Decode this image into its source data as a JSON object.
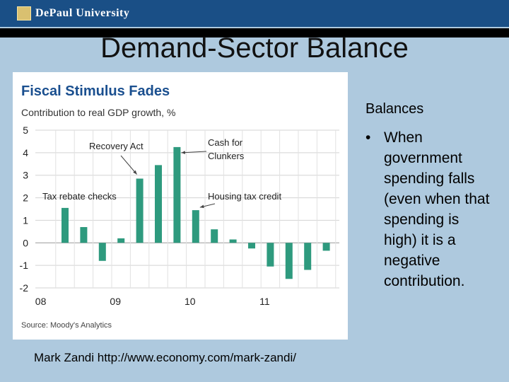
{
  "header": {
    "logo_text": "DePaul University",
    "title": "Demand-Sector Balance"
  },
  "sidebar": {
    "title": "Balances",
    "bullet_symbol": "•",
    "bullet_text": "When government spending falls (even when that spending is high) it is a negative contribution."
  },
  "footer": {
    "credit": "Mark Zandi http://www.economy.com/mark-zandi/"
  },
  "chart_data": {
    "type": "bar",
    "title": "Fiscal Stimulus Fades",
    "subtitle": "Contribution to real GDP growth, %",
    "source": "Source: Moody's Analytics",
    "ylim": [
      -2,
      5
    ],
    "yticks": [
      "5",
      "4",
      "3",
      "2",
      "1",
      "0",
      "-1",
      "-2"
    ],
    "x_labels": [
      {
        "label": "08",
        "index": -1
      },
      {
        "label": "09",
        "index": 3
      },
      {
        "label": "10",
        "index": 7
      },
      {
        "label": "11",
        "index": 11
      }
    ],
    "values": [
      1.55,
      0.7,
      -0.8,
      0.2,
      2.85,
      3.45,
      4.25,
      1.45,
      0.6,
      0.15,
      -0.25,
      -1.05,
      -1.6,
      -1.2,
      -0.35
    ],
    "bar_color": "#2e9a7e",
    "grid": true,
    "annotations": [
      {
        "text": "Tax rebate checks",
        "index": 0
      },
      {
        "text": "Recovery Act",
        "index": 4
      },
      {
        "text": "Cash for Clunkers",
        "index": 6
      },
      {
        "text": "Housing tax credit",
        "index": 7
      }
    ]
  }
}
